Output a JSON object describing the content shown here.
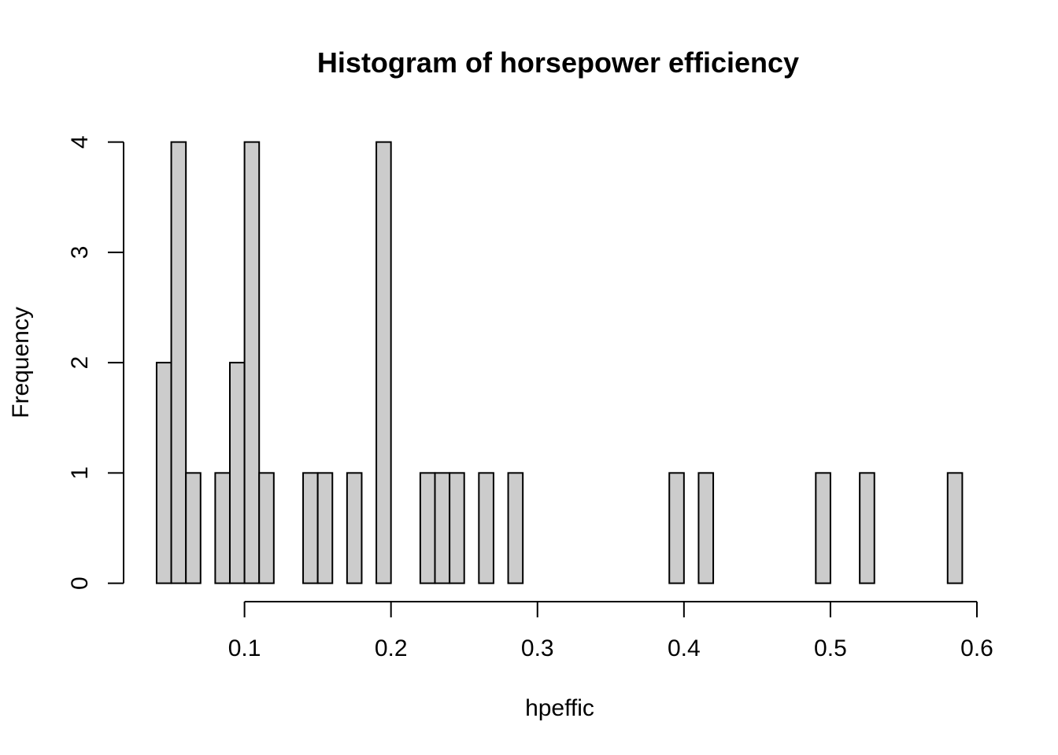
{
  "chart_data": {
    "type": "bar",
    "title": "Histogram of horsepower efficiency",
    "xlabel": "hpeffic",
    "ylabel": "Frequency",
    "bin_width": 0.01,
    "bins_start": [
      0.04,
      0.05,
      0.06,
      0.07,
      0.08,
      0.09,
      0.1,
      0.11,
      0.12,
      0.13,
      0.14,
      0.15,
      0.16,
      0.17,
      0.18,
      0.19,
      0.2,
      0.21,
      0.22,
      0.23,
      0.24,
      0.25,
      0.26,
      0.27,
      0.28,
      0.29,
      0.3,
      0.31,
      0.32,
      0.33,
      0.34,
      0.35,
      0.36,
      0.37,
      0.38,
      0.39,
      0.4,
      0.41,
      0.42,
      0.43,
      0.44,
      0.45,
      0.46,
      0.47,
      0.48,
      0.49,
      0.5,
      0.51,
      0.52,
      0.53,
      0.54,
      0.55,
      0.56,
      0.57,
      0.58
    ],
    "values": [
      2,
      4,
      1,
      0,
      1,
      2,
      4,
      1,
      0,
      0,
      1,
      1,
      0,
      1,
      0,
      4,
      0,
      0,
      1,
      1,
      1,
      0,
      1,
      0,
      1,
      0,
      0,
      0,
      0,
      0,
      0,
      0,
      0,
      0,
      0,
      1,
      0,
      1,
      0,
      0,
      0,
      0,
      0,
      0,
      0,
      1,
      0,
      0,
      1,
      0,
      0,
      0,
      0,
      0,
      1
    ],
    "xlim": [
      0.1,
      0.6
    ],
    "ylim": [
      0,
      4
    ],
    "x_ticks": [
      "0.1",
      "0.2",
      "0.3",
      "0.4",
      "0.5",
      "0.6"
    ],
    "y_ticks": [
      "0",
      "1",
      "2",
      "3",
      "4"
    ],
    "bar_fill": "#cccccc",
    "bar_edge": "#000000",
    "grid": false,
    "legend": "none"
  }
}
